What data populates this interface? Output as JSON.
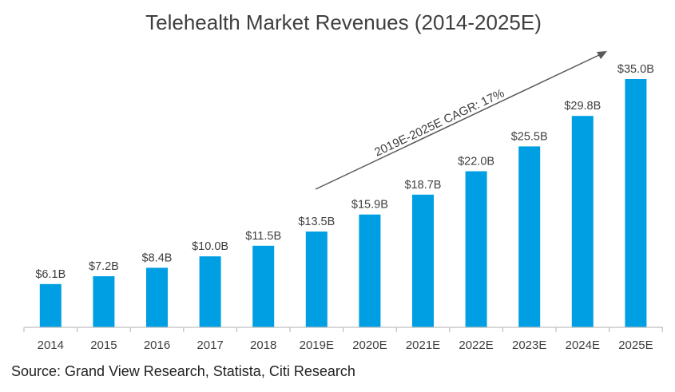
{
  "chart_data": {
    "type": "bar",
    "title": "Telehealth Market Revenues (2014-2025E)",
    "categories": [
      "2014",
      "2015",
      "2016",
      "2017",
      "2018",
      "2019E",
      "2020E",
      "2021E",
      "2022E",
      "2023E",
      "2024E",
      "2025E"
    ],
    "values": [
      6.1,
      7.2,
      8.4,
      10.0,
      11.5,
      13.5,
      15.9,
      18.7,
      22.0,
      25.5,
      29.8,
      35.0
    ],
    "data_labels": [
      "$6.1B",
      "$7.2B",
      "$8.4B",
      "$10.0B",
      "$11.5B",
      "$13.5B",
      "$15.9B",
      "$18.7B",
      "$22.0B",
      "$25.5B",
      "$29.8B",
      "$35.0B"
    ],
    "xlabel": "",
    "ylabel": "",
    "ylim": [
      0,
      35
    ],
    "grid": false,
    "bar_color": "#009fe3",
    "annotation": "2019E-2025E CAGR: 17%"
  },
  "source": "Source: Grand View Research, Statista, Citi Research"
}
